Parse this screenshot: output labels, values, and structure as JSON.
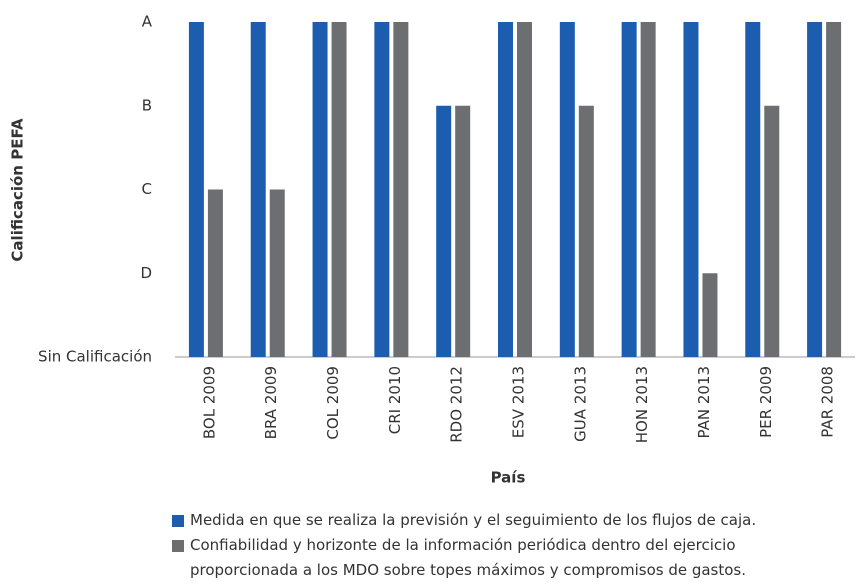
{
  "chart_data": {
    "type": "bar",
    "y_axis_label": "Calificación PEFA",
    "x_axis_label": "País",
    "categories": [
      "BOL 2009",
      "BRA 2009",
      "COL 2009",
      "CRI 2010",
      "RDO 2012",
      "ESV 2013",
      "GUA 2013",
      "HON 2013",
      "PAN 2013",
      "PER 2009",
      "PAR 2008"
    ],
    "series": [
      {
        "name": "Medida en que se realiza la previsión y el seguimiento de los flujos de caja.",
        "color": "#1c5db0",
        "values": [
          4,
          4,
          4,
          4,
          3,
          4,
          4,
          4,
          4,
          4,
          4
        ]
      },
      {
        "name": "Confiabilidad y horizonte de la información periódica dentro del ejercicio proporcionada a los MDO sobre topes máximos y compromisos de gastos.",
        "color": "#6d6e71",
        "values": [
          2,
          2,
          4,
          4,
          3,
          4,
          3,
          4,
          1,
          3,
          4
        ]
      }
    ],
    "ylim": [
      0,
      4
    ],
    "yticks": [
      {
        "value": 0,
        "label": "Sin Calificación"
      },
      {
        "value": 1,
        "label": "D"
      },
      {
        "value": 2,
        "label": "C"
      },
      {
        "value": 3,
        "label": "B"
      },
      {
        "value": 4,
        "label": "A"
      }
    ],
    "grid": false
  }
}
